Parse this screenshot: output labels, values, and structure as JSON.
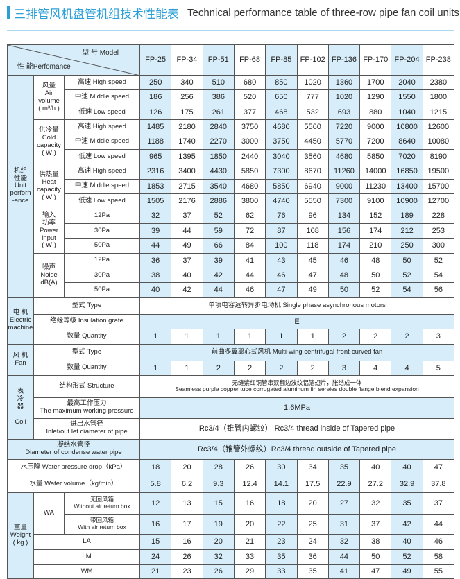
{
  "title_cn": "三排管风机盘管机组技术性能表",
  "title_en": "Technical performance table of three-row pipe fan coil units",
  "colors": {
    "accent": "#2a9fd8",
    "highlight_column": "#d7eefa"
  },
  "header": {
    "model_label": "型 号 Model",
    "performance_label": "性 能Perfomance",
    "models": [
      "FP-25",
      "FP-34",
      "FP-51",
      "FP-68",
      "FP-85",
      "FP-102",
      "FP-136",
      "FP-170",
      "FP-204",
      "FP-238"
    ]
  },
  "unit": {
    "label": "机组\n性能\nUnit\nperforn\n-ance",
    "groups": [
      {
        "label": "风量\nAir\nvolume\n( m³/h )",
        "rows": [
          {
            "label": "高速 High speed",
            "values": [
              250,
              340,
              510,
              680,
              850,
              1020,
              1360,
              1700,
              2040,
              2380
            ]
          },
          {
            "label": "中速 Middle speed",
            "values": [
              186,
              256,
              386,
              520,
              650,
              777,
              1020,
              1290,
              1550,
              1800
            ]
          },
          {
            "label": "低速 Low speed",
            "values": [
              126,
              175,
              261,
              377,
              468,
              532,
              693,
              880,
              1040,
              1215
            ]
          }
        ]
      },
      {
        "label": "供冷量\nCold\ncapacity\n( W )",
        "rows": [
          {
            "label": "高速 High speed",
            "values": [
              1485,
              2180,
              2840,
              3750,
              4680,
              5560,
              7220,
              9000,
              10800,
              12600
            ]
          },
          {
            "label": "中速 Middle speed",
            "values": [
              1188,
              1740,
              2270,
              3000,
              3750,
              4450,
              5770,
              7200,
              8640,
              10080
            ]
          },
          {
            "label": "低速 Low speed",
            "values": [
              965,
              1395,
              1850,
              2440,
              3040,
              3560,
              4680,
              5850,
              7020,
              8190
            ]
          }
        ]
      },
      {
        "label": "供热量\nHeat\ncapacity\n( W )",
        "rows": [
          {
            "label": "高速 High speed",
            "values": [
              2316,
              3400,
              4430,
              5850,
              7300,
              8670,
              11260,
              14000,
              16850,
              19500
            ]
          },
          {
            "label": "中速 Middle speed",
            "values": [
              1853,
              2715,
              3540,
              4680,
              5850,
              6940,
              9000,
              11230,
              13400,
              15700
            ]
          },
          {
            "label": "低速 Low speed",
            "values": [
              1505,
              2176,
              2886,
              3800,
              4740,
              5550,
              7300,
              9100,
              10900,
              12700
            ]
          }
        ]
      },
      {
        "label": "输入\n功率\nPower\ninput\n( W )",
        "rows": [
          {
            "label": "12Pa",
            "values": [
              32,
              37,
              52,
              62,
              76,
              96,
              134,
              152,
              189,
              228
            ]
          },
          {
            "label": "30Pa",
            "values": [
              39,
              44,
              59,
              72,
              87,
              108,
              156,
              174,
              212,
              253
            ]
          },
          {
            "label": "50Pa",
            "values": [
              44,
              49,
              66,
              84,
              100,
              118,
              174,
              210,
              250,
              300
            ]
          }
        ]
      },
      {
        "label": "噪声\nNoise\ndB(A)",
        "rows": [
          {
            "label": "12Pa",
            "values": [
              36,
              37,
              39,
              41,
              43,
              45,
              46,
              48,
              50,
              52
            ]
          },
          {
            "label": "30Pa",
            "values": [
              38,
              40,
              42,
              44,
              46,
              47,
              48,
              50,
              52,
              54
            ]
          },
          {
            "label": "50Pa",
            "values": [
              40,
              42,
              44,
              46,
              47,
              49,
              50,
              52,
              54,
              56
            ]
          }
        ]
      }
    ]
  },
  "motor": {
    "label": "电 机\nElectric\nmachine",
    "type_label": "型式 Type",
    "type_value": "单项电容运转异步电动机 Single phase asynchronous motors",
    "insulation_label": "绝缘等级 Insulation grate",
    "insulation_value": "E",
    "quantity_label": "数量 Quantity",
    "quantity_values": [
      1,
      1,
      1,
      1,
      1,
      1,
      2,
      2,
      2,
      3
    ]
  },
  "fan": {
    "label": "风 机\nFan",
    "type_label": "型式 Type",
    "type_value": "前曲多翼离心式风机 Multi-wing centrifugal front-curved fan",
    "quantity_label": "数量 Quantity",
    "quantity_values": [
      1,
      1,
      2,
      2,
      2,
      2,
      3,
      4,
      4,
      5
    ]
  },
  "coil": {
    "label": "表\n冷\n器\n\nCoil",
    "structure_label": "结构形式 Structure",
    "structure_value": "无缝紫红铜管串双翻边波纹铝箔翅片，胀结成一体\nSeamless purple copper tube corrugated aluminum fin sereies double flange blend expansion",
    "pressure_label": "最高工作压力\nThe maximum working pressure",
    "pressure_value": "1.6MPa",
    "inlet_label": "进出水管径\nInlet/out let diameter of pipe",
    "inlet_value": "Rc3/4（锥管内螺纹） Rc3/4 thread inside of Tapered pipe"
  },
  "condense": {
    "label": "凝结水管径\nDiameter of condense water pipe",
    "value": "Rc3/4（锥管外螺纹）Rc3/4 thread outside of Tapered pipe"
  },
  "pressure_drop": {
    "label": "水压降 Water pressure drop（kPa）",
    "values": [
      18,
      20,
      28,
      26,
      30,
      34,
      35,
      40,
      40,
      47
    ]
  },
  "water_volume": {
    "label": "水量 Water volume（kg/min）",
    "values": [
      "5.8",
      "6.2",
      "9.3",
      "12.4",
      "14.1",
      "17.5",
      "22.9",
      "27.2",
      "32.9",
      "37.8"
    ]
  },
  "weight": {
    "label": "重量\nWeight\n( kg )",
    "wa_label": "WA",
    "rows": [
      {
        "label": "无回风箱\nWithout air return box",
        "values": [
          12,
          13,
          15,
          16,
          18,
          20,
          27,
          32,
          35,
          37
        ]
      },
      {
        "label": "带回风箱\nWith air return box",
        "values": [
          16,
          17,
          19,
          20,
          22,
          25,
          31,
          37,
          42,
          44
        ]
      },
      {
        "label": "LA",
        "values": [
          15,
          16,
          20,
          21,
          23,
          24,
          32,
          38,
          40,
          46
        ]
      },
      {
        "label": "LM",
        "values": [
          24,
          26,
          32,
          33,
          35,
          36,
          44,
          50,
          52,
          58
        ]
      },
      {
        "label": "WM",
        "values": [
          21,
          23,
          26,
          29,
          33,
          35,
          41,
          47,
          49,
          55
        ]
      }
    ]
  }
}
